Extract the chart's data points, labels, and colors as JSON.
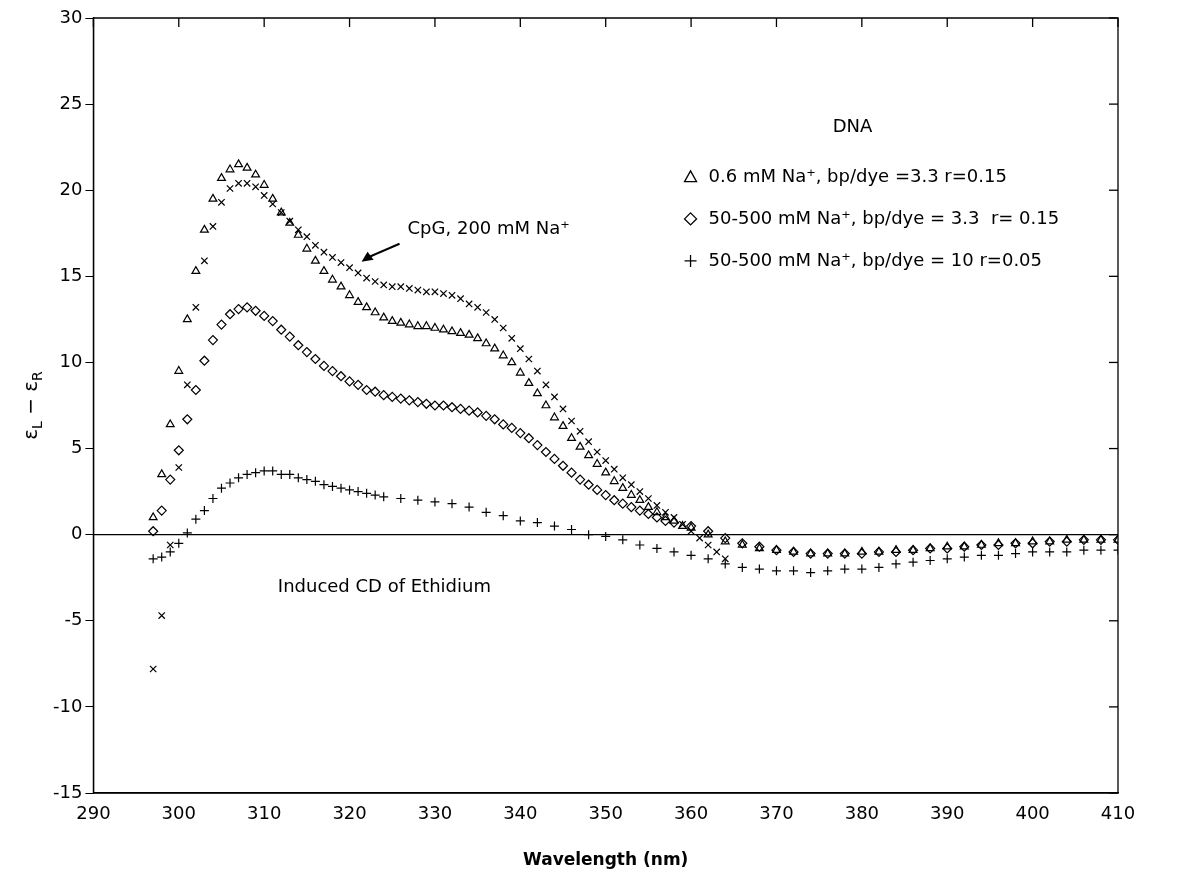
{
  "chart_data": {
    "type": "scatter",
    "xlabel": "Wavelength (nm)",
    "ylabel": "ε$_{L}$ − ε$_{R}$",
    "legend_title": "DNA",
    "legend": "right",
    "xlim": [
      290,
      410
    ],
    "xticks": [
      290,
      300,
      310,
      320,
      330,
      340,
      350,
      360,
      370,
      380,
      390,
      400,
      410
    ],
    "ylim": [
      -15,
      30
    ],
    "yticks": [
      -15,
      -10,
      -5,
      0,
      5,
      10,
      15,
      20,
      25,
      30
    ],
    "ref_lines": [
      {
        "axis": "y",
        "value": 0,
        "color": "#000000"
      }
    ],
    "annotations": [
      "Induced CD of Ethidium"
    ],
    "series": [
      {
        "name": "0.6 mM Na⁺, bp/dye =3.3 r=0.15",
        "color": "#000000",
        "marker": "triangle",
        "x": [
          297,
          298,
          299,
          300,
          301,
          302,
          303,
          304,
          305,
          306,
          307,
          308,
          309,
          310,
          311,
          312,
          313,
          314,
          315,
          316,
          317,
          318,
          319,
          320,
          321,
          322,
          323,
          324,
          325,
          326,
          327,
          328,
          329,
          330,
          331,
          332,
          333,
          334,
          335,
          336,
          337,
          338,
          339,
          340,
          341,
          342,
          343,
          344,
          345,
          346,
          347,
          348,
          349,
          350,
          351,
          352,
          353,
          354,
          355,
          356,
          357,
          358,
          359,
          360,
          362,
          364,
          366,
          368,
          370,
          372,
          374,
          376,
          378,
          380,
          382,
          384,
          386,
          388,
          390,
          392,
          394,
          396,
          398,
          400,
          402,
          404,
          406,
          408,
          410
        ],
        "values": [
          1.0,
          3.5,
          6.4,
          9.5,
          12.5,
          15.3,
          17.7,
          19.5,
          20.7,
          21.2,
          21.5,
          21.3,
          20.9,
          20.3,
          19.5,
          18.7,
          18.1,
          17.4,
          16.6,
          15.9,
          15.3,
          14.8,
          14.4,
          13.9,
          13.5,
          13.2,
          12.9,
          12.6,
          12.4,
          12.3,
          12.2,
          12.1,
          12.1,
          12.0,
          11.9,
          11.8,
          11.7,
          11.6,
          11.4,
          11.1,
          10.8,
          10.4,
          10.0,
          9.4,
          8.8,
          8.2,
          7.5,
          6.8,
          6.3,
          5.6,
          5.1,
          4.6,
          4.1,
          3.6,
          3.1,
          2.7,
          2.3,
          2.0,
          1.6,
          1.3,
          1.0,
          0.8,
          0.5,
          0.4,
          0.0,
          -0.4,
          -0.6,
          -0.8,
          -0.9,
          -1.0,
          -1.1,
          -1.1,
          -1.1,
          -1.0,
          -1.0,
          -0.9,
          -0.9,
          -0.8,
          -0.7,
          -0.7,
          -0.6,
          -0.5,
          -0.5,
          -0.4,
          -0.4,
          -0.3,
          -0.3,
          -0.3,
          -0.3
        ]
      },
      {
        "name": "50-500 mM Na⁺, bp/dye = 3.3  r= 0.15",
        "color": "#000000",
        "marker": "diamond",
        "x": [
          297,
          298,
          299,
          300,
          301,
          302,
          303,
          304,
          305,
          306,
          307,
          308,
          309,
          310,
          311,
          312,
          313,
          314,
          315,
          316,
          317,
          318,
          319,
          320,
          321,
          322,
          323,
          324,
          325,
          326,
          327,
          328,
          329,
          330,
          331,
          332,
          333,
          334,
          335,
          336,
          337,
          338,
          339,
          340,
          341,
          342,
          343,
          344,
          345,
          346,
          347,
          348,
          349,
          350,
          351,
          352,
          353,
          354,
          355,
          356,
          357,
          358,
          360,
          362,
          364,
          366,
          368,
          370,
          372,
          374,
          376,
          378,
          380,
          382,
          384,
          386,
          388,
          390,
          392,
          394,
          396,
          398,
          400,
          402,
          404,
          406,
          408,
          410
        ],
        "values": [
          0.2,
          1.4,
          3.2,
          4.9,
          6.7,
          8.4,
          10.1,
          11.3,
          12.2,
          12.8,
          13.1,
          13.2,
          13.0,
          12.7,
          12.4,
          11.9,
          11.5,
          11.0,
          10.6,
          10.2,
          9.8,
          9.5,
          9.2,
          8.9,
          8.7,
          8.4,
          8.3,
          8.1,
          8.0,
          7.9,
          7.8,
          7.7,
          7.6,
          7.5,
          7.5,
          7.4,
          7.3,
          7.2,
          7.1,
          6.9,
          6.7,
          6.4,
          6.2,
          5.9,
          5.6,
          5.2,
          4.8,
          4.4,
          4.0,
          3.6,
          3.2,
          2.9,
          2.6,
          2.3,
          2.0,
          1.8,
          1.6,
          1.4,
          1.2,
          1.0,
          0.8,
          0.7,
          0.5,
          0.2,
          -0.2,
          -0.5,
          -0.7,
          -0.9,
          -1.0,
          -1.1,
          -1.1,
          -1.1,
          -1.1,
          -1.0,
          -1.0,
          -0.9,
          -0.8,
          -0.8,
          -0.7,
          -0.6,
          -0.6,
          -0.5,
          -0.5,
          -0.4,
          -0.4,
          -0.3,
          -0.3,
          -0.3
        ]
      },
      {
        "name": "50-500 mM Na⁺, bp/dye = 10 r=0.05",
        "color": "#000000",
        "marker": "plus",
        "x": [
          297,
          298,
          299,
          300,
          301,
          302,
          303,
          304,
          305,
          306,
          307,
          308,
          309,
          310,
          311,
          312,
          313,
          314,
          315,
          316,
          317,
          318,
          319,
          320,
          321,
          322,
          323,
          324,
          326,
          328,
          330,
          332,
          334,
          336,
          338,
          340,
          342,
          344,
          346,
          348,
          350,
          352,
          354,
          356,
          358,
          360,
          362,
          364,
          366,
          368,
          370,
          372,
          374,
          376,
          378,
          380,
          382,
          384,
          386,
          388,
          390,
          392,
          394,
          396,
          398,
          400,
          402,
          404,
          406,
          408,
          410
        ],
        "values": [
          -1.4,
          -1.3,
          -1.0,
          -0.5,
          0.1,
          0.9,
          1.4,
          2.1,
          2.7,
          3.0,
          3.3,
          3.5,
          3.6,
          3.7,
          3.7,
          3.5,
          3.5,
          3.3,
          3.2,
          3.1,
          2.9,
          2.8,
          2.7,
          2.6,
          2.5,
          2.4,
          2.3,
          2.2,
          2.1,
          2.0,
          1.9,
          1.8,
          1.6,
          1.3,
          1.1,
          0.8,
          0.7,
          0.5,
          0.3,
          0.0,
          -0.1,
          -0.3,
          -0.6,
          -0.8,
          -1.0,
          -1.2,
          -1.4,
          -1.7,
          -1.9,
          -2.0,
          -2.1,
          -2.1,
          -2.2,
          -2.1,
          -2.0,
          -2.0,
          -1.9,
          -1.7,
          -1.6,
          -1.5,
          -1.4,
          -1.3,
          -1.2,
          -1.2,
          -1.1,
          -1.0,
          -1.0,
          -1.0,
          -0.9,
          -0.9,
          -0.9
        ]
      },
      {
        "name": "CpG, 200 mM Na⁺",
        "color": "#000000",
        "marker": "cross",
        "x": [
          297,
          298,
          299,
          300,
          301,
          302,
          303,
          304,
          305,
          306,
          307,
          308,
          309,
          310,
          311,
          312,
          313,
          314,
          315,
          316,
          317,
          318,
          319,
          320,
          321,
          322,
          323,
          324,
          325,
          326,
          327,
          328,
          329,
          330,
          331,
          332,
          333,
          334,
          335,
          336,
          337,
          338,
          339,
          340,
          341,
          342,
          343,
          344,
          345,
          346,
          347,
          348,
          349,
          350,
          351,
          352,
          353,
          354,
          355,
          356,
          357,
          358,
          359,
          360,
          361,
          362,
          363,
          364
        ],
        "values": [
          -7.8,
          -4.7,
          -0.6,
          3.9,
          8.7,
          13.2,
          15.9,
          17.9,
          19.3,
          20.1,
          20.4,
          20.4,
          20.2,
          19.7,
          19.2,
          18.7,
          18.2,
          17.7,
          17.3,
          16.8,
          16.4,
          16.1,
          15.8,
          15.5,
          15.2,
          14.9,
          14.7,
          14.5,
          14.4,
          14.4,
          14.3,
          14.2,
          14.1,
          14.1,
          14.0,
          13.9,
          13.7,
          13.4,
          13.2,
          12.9,
          12.5,
          12.0,
          11.4,
          10.8,
          10.2,
          9.5,
          8.7,
          8.0,
          7.3,
          6.6,
          6.0,
          5.4,
          4.8,
          4.3,
          3.8,
          3.3,
          2.9,
          2.5,
          2.1,
          1.7,
          1.3,
          1.0,
          0.6,
          0.2,
          -0.2,
          -0.6,
          -1.0,
          -1.4
        ]
      }
    ]
  }
}
